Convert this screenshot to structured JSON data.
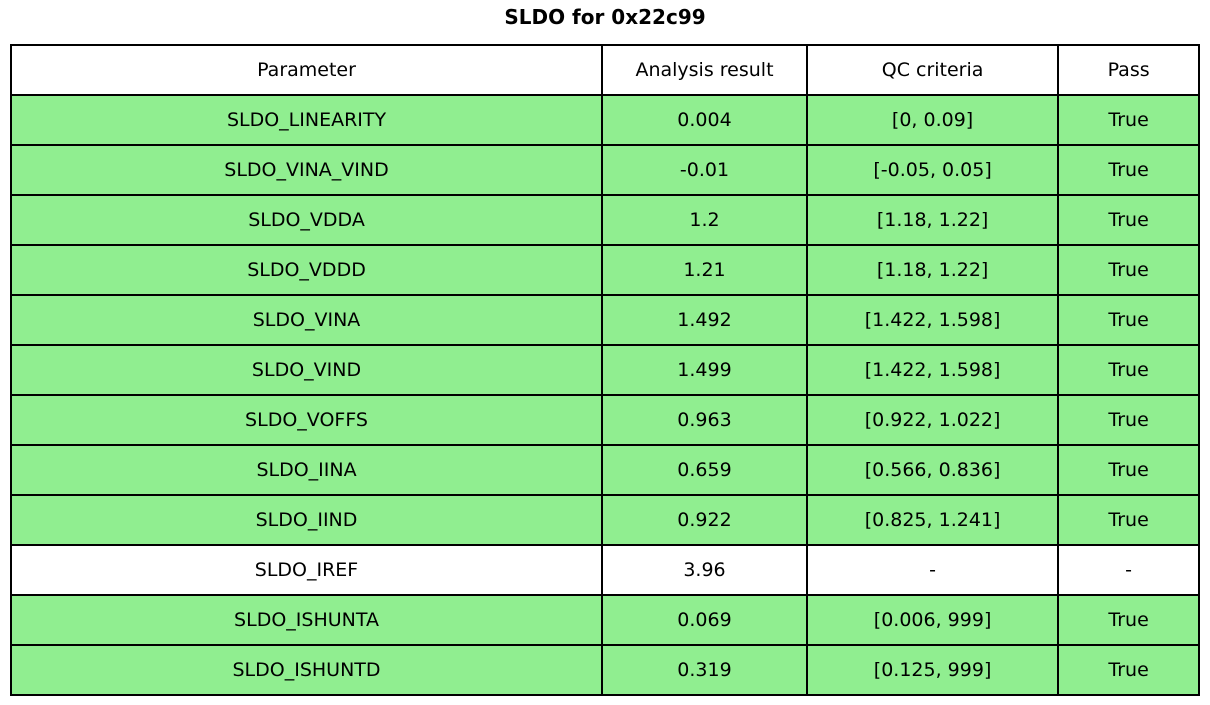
{
  "title": "SLDO for 0x22c99",
  "chart_data": {
    "type": "table",
    "title": "SLDO for 0x22c99",
    "columns": [
      "Parameter",
      "Analysis result",
      "QC criteria",
      "Pass"
    ],
    "rows": [
      {
        "parameter": "SLDO_LINEARITY",
        "result": "0.004",
        "criteria": "[0, 0.09]",
        "pass": "True",
        "highlight": true
      },
      {
        "parameter": "SLDO_VINA_VIND",
        "result": "-0.01",
        "criteria": "[-0.05, 0.05]",
        "pass": "True",
        "highlight": true
      },
      {
        "parameter": "SLDO_VDDA",
        "result": "1.2",
        "criteria": "[1.18, 1.22]",
        "pass": "True",
        "highlight": true
      },
      {
        "parameter": "SLDO_VDDD",
        "result": "1.21",
        "criteria": "[1.18, 1.22]",
        "pass": "True",
        "highlight": true
      },
      {
        "parameter": "SLDO_VINA",
        "result": "1.492",
        "criteria": "[1.422, 1.598]",
        "pass": "True",
        "highlight": true
      },
      {
        "parameter": "SLDO_VIND",
        "result": "1.499",
        "criteria": "[1.422, 1.598]",
        "pass": "True",
        "highlight": true
      },
      {
        "parameter": "SLDO_VOFFS",
        "result": "0.963",
        "criteria": "[0.922, 1.022]",
        "pass": "True",
        "highlight": true
      },
      {
        "parameter": "SLDO_IINA",
        "result": "0.659",
        "criteria": "[0.566, 0.836]",
        "pass": "True",
        "highlight": true
      },
      {
        "parameter": "SLDO_IIND",
        "result": "0.922",
        "criteria": "[0.825, 1.241]",
        "pass": "True",
        "highlight": true
      },
      {
        "parameter": "SLDO_IREF",
        "result": "3.96",
        "criteria": "-",
        "pass": "-",
        "highlight": false
      },
      {
        "parameter": "SLDO_ISHUNTA",
        "result": "0.069",
        "criteria": "[0.006, 999]",
        "pass": "True",
        "highlight": true
      },
      {
        "parameter": "SLDO_ISHUNTD",
        "result": "0.319",
        "criteria": "[0.125, 999]",
        "pass": "True",
        "highlight": true
      }
    ],
    "colors": {
      "pass_row_bg": "#90ee90",
      "neutral_row_bg": "#ffffff",
      "header_bg": "#ffffff",
      "border": "#000000",
      "text": "#000000"
    },
    "layout_hints": {
      "grid": true,
      "title_position": "top-center",
      "column_alignment": "center"
    }
  }
}
